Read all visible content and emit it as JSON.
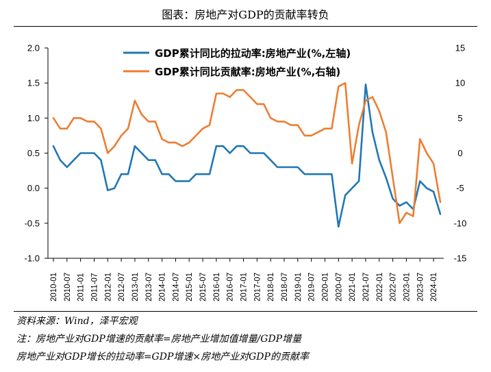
{
  "title": "图表：房地产对GDP的贡献率转负",
  "chart_data": {
    "type": "line",
    "x": [
      "2010-01",
      "2010-04",
      "2010-07",
      "2010-10",
      "2011-01",
      "2011-04",
      "2011-07",
      "2011-10",
      "2012-01",
      "2012-04",
      "2012-07",
      "2012-10",
      "2013-01",
      "2013-04",
      "2013-07",
      "2013-10",
      "2014-01",
      "2014-04",
      "2014-07",
      "2014-10",
      "2015-01",
      "2015-04",
      "2015-07",
      "2015-10",
      "2016-01",
      "2016-04",
      "2016-07",
      "2016-10",
      "2017-01",
      "2017-04",
      "2017-07",
      "2017-10",
      "2018-01",
      "2018-04",
      "2018-07",
      "2018-10",
      "2019-01",
      "2019-04",
      "2019-07",
      "2019-10",
      "2020-01",
      "2020-04",
      "2020-07",
      "2020-10",
      "2021-01",
      "2021-04",
      "2021-07",
      "2021-10",
      "2022-01",
      "2022-04",
      "2022-07",
      "2022-10",
      "2023-01",
      "2023-04",
      "2023-07",
      "2023-10",
      "2024-01",
      "2024-04"
    ],
    "x_tick_labels": [
      "2010-01",
      "2010-07",
      "2011-01",
      "2011-07",
      "2012-01",
      "2012-07",
      "2013-01",
      "2013-07",
      "2014-01",
      "2014-07",
      "2015-01",
      "2015-07",
      "2016-01",
      "2016-07",
      "2017-01",
      "2017-07",
      "2018-01",
      "2018-07",
      "2019-01",
      "2019-07",
      "2020-01",
      "2020-07",
      "2021-01",
      "2021-07",
      "2022-01",
      "2022-07",
      "2023-01",
      "2023-07",
      "2024-01"
    ],
    "series": [
      {
        "name": "GDP累计同比的拉动率:房地产业(%,左轴)",
        "axis": "left",
        "color": "#1f77b4",
        "values": [
          0.6,
          0.4,
          0.3,
          0.4,
          0.5,
          0.5,
          0.5,
          0.4,
          -0.03,
          0.0,
          0.2,
          0.2,
          0.6,
          0.5,
          0.4,
          0.4,
          0.2,
          0.2,
          0.1,
          0.1,
          0.1,
          0.2,
          0.2,
          0.2,
          0.6,
          0.6,
          0.5,
          0.6,
          0.6,
          0.5,
          0.5,
          0.5,
          0.4,
          0.3,
          0.3,
          0.3,
          0.3,
          0.2,
          0.2,
          0.2,
          0.2,
          0.2,
          -0.55,
          -0.1,
          0.0,
          0.1,
          1.48,
          0.8,
          0.4,
          0.15,
          -0.15,
          -0.25,
          -0.2,
          -0.3,
          0.1,
          0.0,
          -0.05,
          -0.37
        ]
      },
      {
        "name": "GDP累计同比贡献率:房地产业(%,右轴)",
        "axis": "right",
        "color": "#ed7d31",
        "values": [
          5.0,
          3.5,
          3.5,
          5.0,
          5.0,
          4.5,
          4.5,
          3.5,
          0.0,
          1.0,
          2.5,
          3.5,
          7.5,
          5.5,
          4.5,
          4.5,
          2.0,
          1.5,
          1.5,
          1.0,
          1.5,
          2.5,
          3.5,
          4.0,
          8.5,
          8.5,
          8.0,
          9.0,
          9.0,
          8.0,
          7.0,
          7.0,
          5.0,
          4.5,
          4.5,
          4.0,
          4.0,
          2.5,
          2.5,
          3.0,
          3.5,
          3.5,
          9.5,
          10.0,
          -1.5,
          4.0,
          7.5,
          8.0,
          6.0,
          3.0,
          -3.5,
          -10.0,
          -8.5,
          -9.0,
          2.0,
          0.0,
          -1.5,
          -7.0
        ]
      }
    ],
    "left_axis": {
      "ylim": [
        -1.0,
        2.0
      ],
      "ticks": [
        "2.0",
        "1.5",
        "1.0",
        "0.5",
        "0.0",
        "-0.5",
        "-1.0"
      ]
    },
    "right_axis": {
      "ylim": [
        -15,
        15
      ],
      "ticks": [
        "15",
        "10",
        "5",
        "0",
        "-5",
        "-10",
        "-15"
      ]
    },
    "legend_position": "top"
  },
  "notes": {
    "source": "资料来源：Wind，泽平宏观",
    "note1": "注：房地产业对GDP增速的贡献率=房地产业增加值增量/GDP增量",
    "note2": "房地产业对GDP增长的拉动率=GDP增速×房地产业对GDP的贡献率"
  }
}
